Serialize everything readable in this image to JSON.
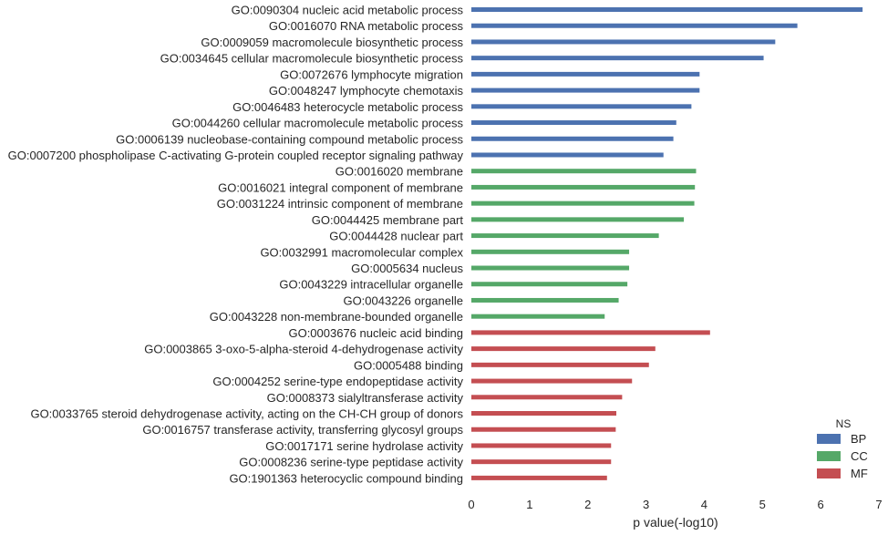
{
  "chart_data": {
    "type": "bar",
    "orientation": "horizontal",
    "xlabel": "p value(-log10)",
    "ylabel": "",
    "xlim": [
      0,
      7
    ],
    "xticks": [
      0,
      1,
      2,
      3,
      4,
      5,
      6,
      7
    ],
    "grid": false,
    "legend": {
      "title": "NS",
      "placement": "bottom-right",
      "entries": [
        {
          "name": "BP",
          "color": "#4c72b0"
        },
        {
          "name": "CC",
          "color": "#55a868"
        },
        {
          "name": "MF",
          "color": "#c44e52"
        }
      ]
    },
    "bars": [
      {
        "label": "GO:0090304 nucleic acid metabolic process",
        "value": 6.72,
        "ns": "BP"
      },
      {
        "label": "GO:0016070 RNA metabolic process",
        "value": 5.6,
        "ns": "BP"
      },
      {
        "label": "GO:0009059 macromolecule biosynthetic process",
        "value": 5.22,
        "ns": "BP"
      },
      {
        "label": "GO:0034645 cellular macromolecule biosynthetic process",
        "value": 5.02,
        "ns": "BP"
      },
      {
        "label": "GO:0072676 lymphocyte migration",
        "value": 3.92,
        "ns": "BP"
      },
      {
        "label": "GO:0048247 lymphocyte chemotaxis",
        "value": 3.92,
        "ns": "BP"
      },
      {
        "label": "GO:0046483 heterocycle metabolic process",
        "value": 3.78,
        "ns": "BP"
      },
      {
        "label": "GO:0044260 cellular macromolecule metabolic process",
        "value": 3.52,
        "ns": "BP"
      },
      {
        "label": "GO:0006139 nucleobase-containing compound metabolic process",
        "value": 3.47,
        "ns": "BP"
      },
      {
        "label": "GO:0007200 phospholipase C-activating G-protein coupled receptor signaling pathway",
        "value": 3.3,
        "ns": "BP"
      },
      {
        "label": "GO:0016020 membrane",
        "value": 3.86,
        "ns": "CC"
      },
      {
        "label": "GO:0016021 integral component of membrane",
        "value": 3.84,
        "ns": "CC"
      },
      {
        "label": "GO:0031224 intrinsic component of membrane",
        "value": 3.83,
        "ns": "CC"
      },
      {
        "label": "GO:0044425 membrane part",
        "value": 3.65,
        "ns": "CC"
      },
      {
        "label": "GO:0044428 nuclear part",
        "value": 3.22,
        "ns": "CC"
      },
      {
        "label": "GO:0032991 macromolecular complex",
        "value": 2.71,
        "ns": "CC"
      },
      {
        "label": "GO:0005634 nucleus",
        "value": 2.71,
        "ns": "CC"
      },
      {
        "label": "GO:0043229 intracellular organelle",
        "value": 2.68,
        "ns": "CC"
      },
      {
        "label": "GO:0043226 organelle",
        "value": 2.53,
        "ns": "CC"
      },
      {
        "label": "GO:0043228 non-membrane-bounded organelle",
        "value": 2.29,
        "ns": "CC"
      },
      {
        "label": "GO:0003676 nucleic acid binding",
        "value": 4.1,
        "ns": "MF"
      },
      {
        "label": "GO:0003865 3-oxo-5-alpha-steroid 4-dehydrogenase activity",
        "value": 3.16,
        "ns": "MF"
      },
      {
        "label": "GO:0005488 binding",
        "value": 3.05,
        "ns": "MF"
      },
      {
        "label": "GO:0004252 serine-type endopeptidase activity",
        "value": 2.76,
        "ns": "MF"
      },
      {
        "label": "GO:0008373 sialyltransferase activity",
        "value": 2.59,
        "ns": "MF"
      },
      {
        "label": "GO:0033765 steroid dehydrogenase activity, acting on the CH-CH group of donors",
        "value": 2.49,
        "ns": "MF"
      },
      {
        "label": "GO:0016757 transferase activity, transferring glycosyl groups",
        "value": 2.48,
        "ns": "MF"
      },
      {
        "label": "GO:0017171 serine hydrolase activity",
        "value": 2.4,
        "ns": "MF"
      },
      {
        "label": "GO:0008236 serine-type peptidase activity",
        "value": 2.4,
        "ns": "MF"
      },
      {
        "label": "GO:1901363 heterocyclic compound binding",
        "value": 2.33,
        "ns": "MF"
      }
    ]
  }
}
